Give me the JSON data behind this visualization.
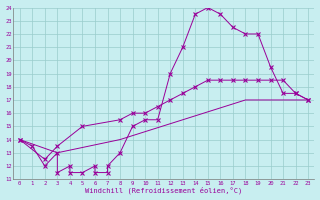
{
  "xlabel": "Windchill (Refroidissement éolien,°C)",
  "xlim": [
    -0.5,
    23.5
  ],
  "ylim": [
    11,
    24
  ],
  "xticks": [
    0,
    1,
    2,
    3,
    4,
    5,
    6,
    7,
    8,
    9,
    10,
    11,
    12,
    13,
    14,
    15,
    16,
    17,
    18,
    19,
    20,
    21,
    22,
    23
  ],
  "yticks": [
    11,
    12,
    13,
    14,
    15,
    16,
    17,
    18,
    19,
    20,
    21,
    22,
    23,
    24
  ],
  "bg_color": "#c8eef0",
  "line_color": "#990099",
  "grid_color": "#99cccc",
  "curve1_x": [
    0,
    1,
    2,
    3,
    3,
    4,
    4,
    5,
    6,
    6,
    7,
    7,
    8,
    9,
    10,
    11,
    12,
    13,
    14,
    15,
    16,
    17,
    18,
    19,
    20,
    21,
    22,
    23
  ],
  "curve1_y": [
    14,
    13.5,
    12,
    13,
    11.5,
    12,
    11.5,
    11.5,
    12,
    11.5,
    11.5,
    12,
    13,
    15,
    15.5,
    15.5,
    19,
    21,
    23.5,
    24,
    23.5,
    22.5,
    22,
    22,
    19.5,
    17.5,
    17.5,
    17
  ],
  "curve2_x": [
    0,
    2,
    3,
    5,
    8,
    9,
    10,
    11,
    12,
    13,
    14,
    15,
    16,
    17,
    18,
    19,
    20,
    21,
    22,
    23
  ],
  "curve2_y": [
    14,
    12.5,
    13.5,
    15,
    15.5,
    16,
    16,
    16.5,
    17,
    17.5,
    18,
    18.5,
    18.5,
    18.5,
    18.5,
    18.5,
    18.5,
    18.5,
    17.5,
    17
  ],
  "curve3_x": [
    0,
    3,
    8,
    13,
    18,
    23
  ],
  "curve3_y": [
    14,
    13,
    14,
    15.5,
    17,
    17
  ],
  "font": "monospace"
}
